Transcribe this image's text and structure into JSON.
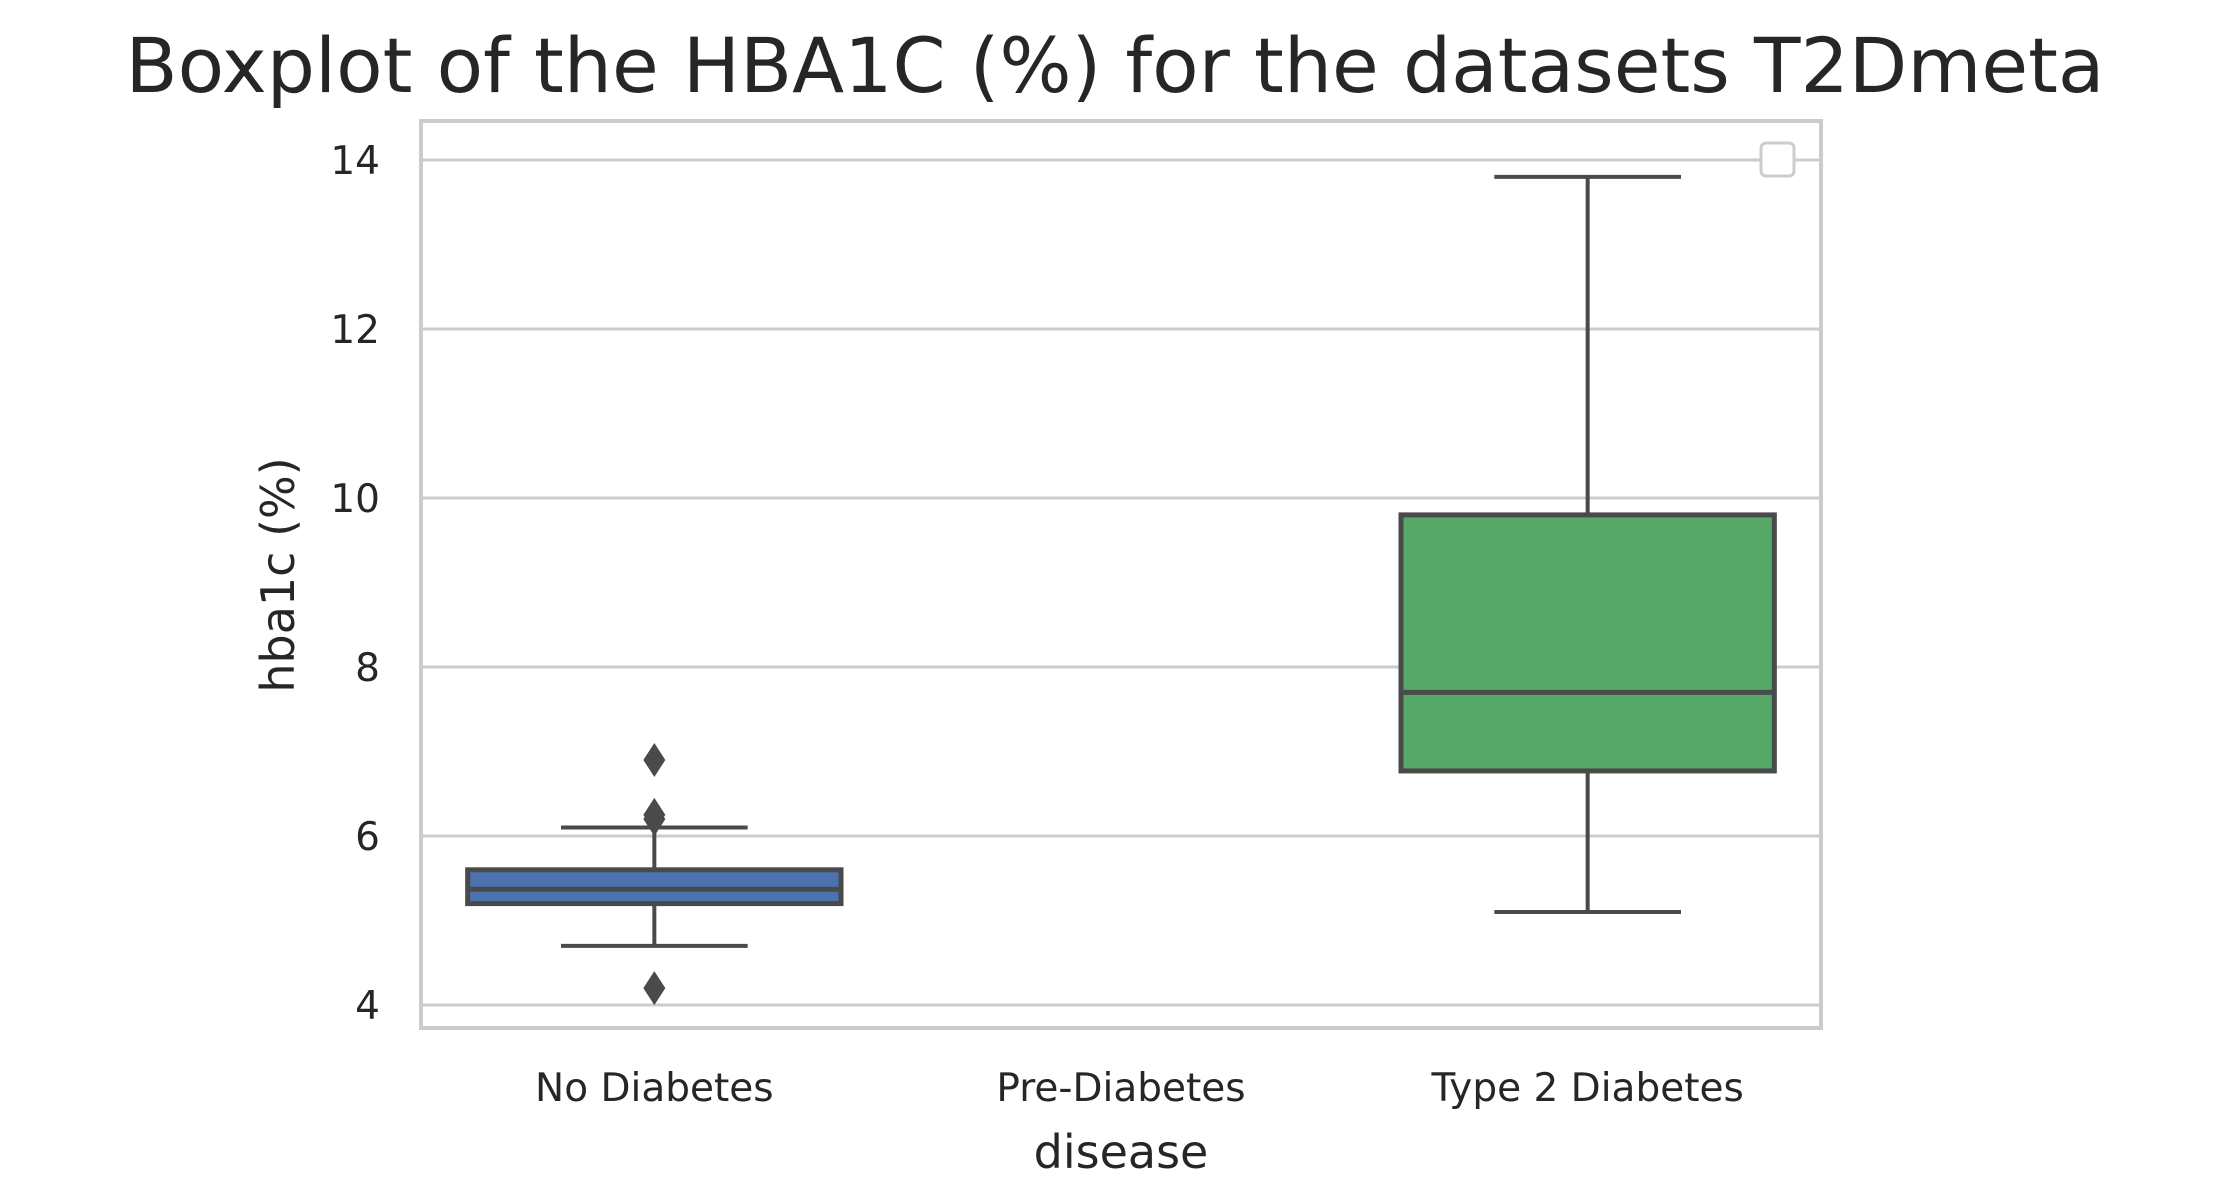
{
  "chart_data": {
    "type": "boxplot",
    "title": "Boxplot of the HBA1C (%) for the datasets T2Dmeta",
    "xlabel": "disease",
    "ylabel": "hba1c (%)",
    "ylim": [
      3.7,
      14.3
    ],
    "yticks": [
      4,
      6,
      8,
      10,
      12,
      14
    ],
    "grid": "horizontal",
    "legend": "top-right (empty)",
    "categories": [
      "No Diabetes",
      "Pre-Diabetes",
      "Type 2 Diabetes"
    ],
    "boxes": [
      {
        "category": "No Diabetes",
        "color": "#4c72b0",
        "whisker_low": 4.7,
        "q1": 5.2,
        "median": 5.37,
        "q3": 5.6,
        "whisker_high": 6.1,
        "outliers": [
          4.2,
          6.2,
          6.25,
          6.9
        ]
      },
      {
        "category": "Pre-Diabetes",
        "color": "#dd8452",
        "empty": true
      },
      {
        "category": "Type 2 Diabetes",
        "color": "#55a868",
        "whisker_low": 5.1,
        "q1": 6.77,
        "median": 7.7,
        "q3": 9.8,
        "whisker_high": 13.8,
        "outliers": []
      }
    ]
  }
}
